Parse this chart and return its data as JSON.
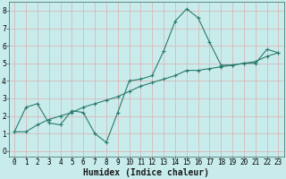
{
  "title": "",
  "xlabel": "Humidex (Indice chaleur)",
  "ylabel": "",
  "xlim": [
    -0.5,
    23.5
  ],
  "ylim": [
    -0.3,
    8.5
  ],
  "background_color": "#c8ecec",
  "grid_color": "#dbb8b8",
  "line_color": "#2a7a6a",
  "x_data": [
    0,
    1,
    2,
    3,
    4,
    5,
    6,
    7,
    8,
    9,
    10,
    11,
    12,
    13,
    14,
    15,
    16,
    17,
    18,
    19,
    20,
    21,
    22,
    23
  ],
  "y_line1": [
    1.1,
    2.5,
    2.7,
    1.6,
    1.5,
    2.3,
    2.2,
    1.0,
    0.5,
    2.2,
    4.0,
    4.1,
    4.3,
    5.7,
    7.4,
    8.1,
    7.6,
    6.2,
    4.9,
    4.9,
    5.0,
    5.0,
    5.8,
    5.6
  ],
  "y_line2": [
    1.1,
    1.1,
    1.5,
    1.8,
    2.0,
    2.2,
    2.5,
    2.7,
    2.9,
    3.1,
    3.4,
    3.7,
    3.9,
    4.1,
    4.3,
    4.6,
    4.6,
    4.7,
    4.8,
    4.9,
    5.0,
    5.1,
    5.4,
    5.6
  ],
  "xticks": [
    0,
    1,
    2,
    3,
    4,
    5,
    6,
    7,
    8,
    9,
    10,
    11,
    12,
    13,
    14,
    15,
    16,
    17,
    18,
    19,
    20,
    21,
    22,
    23
  ],
  "yticks": [
    0,
    1,
    2,
    3,
    4,
    5,
    6,
    7,
    8
  ],
  "tick_fontsize": 5.5,
  "xlabel_fontsize": 7,
  "lw": 0.8,
  "ms": 3
}
